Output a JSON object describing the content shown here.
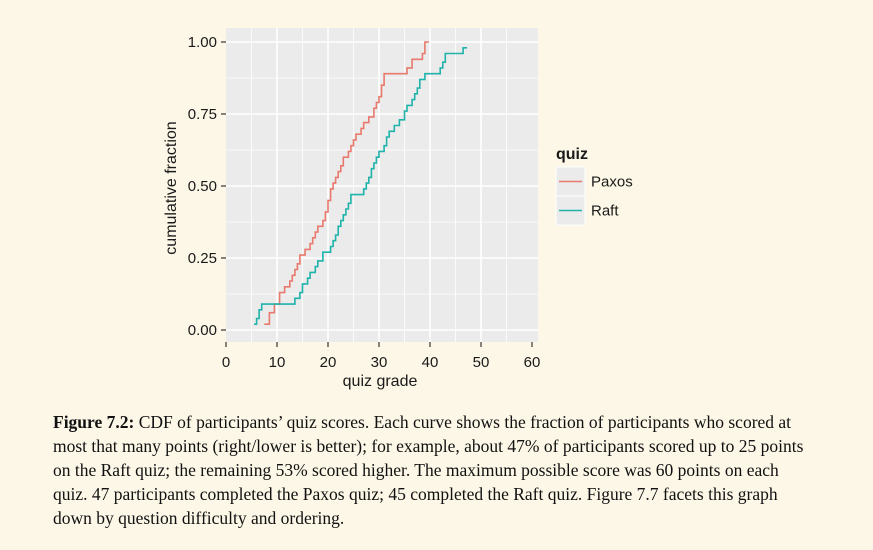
{
  "chart_data": {
    "type": "line",
    "step": true,
    "xlabel": "quiz grade",
    "ylabel": "cumulative fraction",
    "xlim": [
      0,
      60
    ],
    "ylim": [
      0,
      1
    ],
    "xticks": [
      0,
      10,
      20,
      30,
      40,
      50,
      60
    ],
    "xtick_labels": [
      "0",
      "10",
      "20",
      "30",
      "40",
      "50",
      "60"
    ],
    "yticks": [
      0,
      0.25,
      0.5,
      0.75,
      1.0
    ],
    "ytick_labels": [
      "0.00",
      "0.25",
      "0.50",
      "0.75",
      "1.00"
    ],
    "grid": true,
    "legend": {
      "title": "quiz",
      "position": "right"
    },
    "series": [
      {
        "name": "Paxos",
        "color": "#e8796c",
        "points": [
          [
            7.5,
            0.02
          ],
          [
            8.5,
            0.06
          ],
          [
            9.5,
            0.09
          ],
          [
            10.5,
            0.13
          ],
          [
            11.5,
            0.15
          ],
          [
            12.5,
            0.17
          ],
          [
            13,
            0.19
          ],
          [
            13.5,
            0.21
          ],
          [
            14,
            0.23
          ],
          [
            14.5,
            0.26
          ],
          [
            15.5,
            0.28
          ],
          [
            16.5,
            0.3
          ],
          [
            17,
            0.32
          ],
          [
            17.5,
            0.34
          ],
          [
            18,
            0.36
          ],
          [
            19,
            0.38
          ],
          [
            19.5,
            0.41
          ],
          [
            20,
            0.45
          ],
          [
            20.5,
            0.49
          ],
          [
            21,
            0.51
          ],
          [
            21.5,
            0.53
          ],
          [
            22,
            0.55
          ],
          [
            22.5,
            0.57
          ],
          [
            23,
            0.6
          ],
          [
            24,
            0.62
          ],
          [
            24.5,
            0.64
          ],
          [
            25,
            0.66
          ],
          [
            25.5,
            0.68
          ],
          [
            26.5,
            0.7
          ],
          [
            27,
            0.72
          ],
          [
            28,
            0.74
          ],
          [
            29,
            0.77
          ],
          [
            29.5,
            0.79
          ],
          [
            30,
            0.81
          ],
          [
            30.5,
            0.85
          ],
          [
            31,
            0.89
          ],
          [
            35.5,
            0.91
          ],
          [
            36.5,
            0.94
          ],
          [
            38.5,
            0.96
          ],
          [
            39,
            1.0
          ]
        ]
      },
      {
        "name": "Raft",
        "color": "#1fb3ab",
        "points": [
          [
            5.5,
            0.02
          ],
          [
            6,
            0.04
          ],
          [
            6.5,
            0.07
          ],
          [
            7,
            0.09
          ],
          [
            13.5,
            0.11
          ],
          [
            14.5,
            0.13
          ],
          [
            15,
            0.16
          ],
          [
            16,
            0.18
          ],
          [
            16.5,
            0.2
          ],
          [
            17.5,
            0.22
          ],
          [
            18,
            0.24
          ],
          [
            19,
            0.27
          ],
          [
            20.5,
            0.29
          ],
          [
            21,
            0.31
          ],
          [
            21.5,
            0.33
          ],
          [
            22,
            0.36
          ],
          [
            22.5,
            0.38
          ],
          [
            23,
            0.4
          ],
          [
            23.5,
            0.42
          ],
          [
            24,
            0.44
          ],
          [
            24.5,
            0.47
          ],
          [
            27,
            0.49
          ],
          [
            27.5,
            0.51
          ],
          [
            28,
            0.53
          ],
          [
            28.5,
            0.56
          ],
          [
            29,
            0.58
          ],
          [
            29.5,
            0.6
          ],
          [
            30,
            0.62
          ],
          [
            31,
            0.64
          ],
          [
            31.5,
            0.67
          ],
          [
            32,
            0.69
          ],
          [
            33,
            0.71
          ],
          [
            34,
            0.73
          ],
          [
            35,
            0.76
          ],
          [
            35.5,
            0.78
          ],
          [
            36.5,
            0.8
          ],
          [
            37,
            0.82
          ],
          [
            37.5,
            0.84
          ],
          [
            38,
            0.87
          ],
          [
            39,
            0.89
          ],
          [
            42,
            0.91
          ],
          [
            42.5,
            0.93
          ],
          [
            43,
            0.96
          ],
          [
            46.5,
            0.98
          ]
        ]
      }
    ]
  },
  "caption": {
    "label": "Figure 7.2:",
    "text": " CDF of participants’ quiz scores. Each curve shows the fraction of participants who scored at most that many points (right/lower is better); for example, about 47% of participants scored up to 25 points on the Raft quiz; the remaining 53% scored higher. The maximum possible score was 60 points on each quiz. 47 participants completed the Paxos quiz; 45 completed the Raft quiz. Figure 7.7 facets this graph down by question difficulty and ordering."
  },
  "colors": {
    "background": "#fcf7e6",
    "panel": "#ebebeb",
    "grid": "#ffffff"
  }
}
